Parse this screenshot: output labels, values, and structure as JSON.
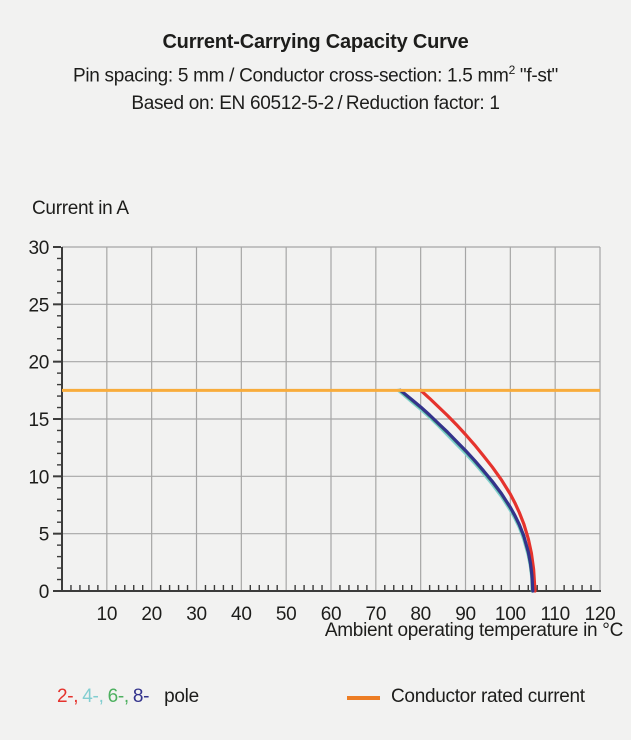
{
  "header": {
    "title": "Current-Carrying Capacity Curve",
    "subtitle1_main": "Pin spacing: 5 mm / Conductor cross-section: 1.5 mm",
    "subtitle1_sup": "2",
    "subtitle1_tail": " \"f-st\"",
    "subtitle2": "Based on: EN 60512-5-2 / Reduction factor: 1"
  },
  "chart_data": {
    "type": "line",
    "title": "Current-Carrying Capacity Curve",
    "xlabel": "Ambient operating temperature in °C",
    "ylabel": "Current in A",
    "xlim": [
      0,
      120
    ],
    "ylim": [
      0,
      30
    ],
    "x_major_ticks": [
      10,
      20,
      30,
      40,
      50,
      60,
      70,
      80,
      90,
      100,
      110,
      120
    ],
    "x_minor_step": 2,
    "y_major_ticks": [
      0,
      5,
      10,
      15,
      20,
      25,
      30
    ],
    "y_minor_step": 1,
    "grid": true,
    "grid_color": "#a6a6a6",
    "axis_color": "#3c3c3b",
    "rated_current": {
      "value": 17.5,
      "label": "Conductor rated current",
      "line_color": "#f8ac3c",
      "swatch_color": "#ed7d24"
    },
    "series": [
      {
        "name": "2-pole",
        "color": "#e5332d",
        "points": [
          [
            80,
            17.5
          ],
          [
            82,
            16.8
          ],
          [
            84,
            16.05
          ],
          [
            86,
            15.3
          ],
          [
            88,
            14.5
          ],
          [
            90,
            13.65
          ],
          [
            92,
            12.75
          ],
          [
            94,
            11.8
          ],
          [
            96,
            10.8
          ],
          [
            98,
            9.7
          ],
          [
            100,
            8.45
          ],
          [
            101,
            7.7
          ],
          [
            102,
            6.85
          ],
          [
            103,
            5.85
          ],
          [
            104,
            4.55
          ],
          [
            104.7,
            3.3
          ],
          [
            105.2,
            1.9
          ],
          [
            105.5,
            0
          ]
        ]
      },
      {
        "name": "4-pole",
        "color": "#82ced1",
        "points": [
          [
            75,
            17.5
          ],
          [
            78,
            16.5
          ],
          [
            80,
            15.85
          ],
          [
            82,
            15.15
          ],
          [
            84,
            14.4
          ],
          [
            86,
            13.6
          ],
          [
            88,
            12.8
          ],
          [
            90,
            12.0
          ],
          [
            92,
            11.15
          ],
          [
            94,
            10.25
          ],
          [
            96,
            9.3
          ],
          [
            98,
            8.25
          ],
          [
            100,
            7.05
          ],
          [
            101,
            6.35
          ],
          [
            102,
            5.55
          ],
          [
            103,
            4.5
          ],
          [
            104,
            3.1
          ],
          [
            104.5,
            2.1
          ],
          [
            104.8,
            1.1
          ],
          [
            104.9,
            0
          ]
        ]
      },
      {
        "name": "6-pole",
        "color": "#4db05f",
        "points": [
          [
            75.4,
            17.5
          ],
          [
            78,
            16.65
          ],
          [
            80,
            16.0
          ],
          [
            82,
            15.3
          ],
          [
            84,
            14.55
          ],
          [
            86,
            13.8
          ],
          [
            88,
            13.0
          ],
          [
            90,
            12.2
          ],
          [
            92,
            11.35
          ],
          [
            94,
            10.45
          ],
          [
            96,
            9.5
          ],
          [
            98,
            8.45
          ],
          [
            100,
            7.25
          ],
          [
            101,
            6.55
          ],
          [
            102,
            5.75
          ],
          [
            103,
            4.75
          ],
          [
            104,
            3.35
          ],
          [
            104.5,
            2.35
          ],
          [
            104.8,
            1.35
          ],
          [
            104.95,
            0
          ]
        ]
      },
      {
        "name": "8-pole",
        "color": "#33338c",
        "points": [
          [
            75.5,
            17.5
          ],
          [
            78,
            16.7
          ],
          [
            80,
            16.05
          ],
          [
            82,
            15.35
          ],
          [
            84,
            14.6
          ],
          [
            86,
            13.85
          ],
          [
            88,
            13.05
          ],
          [
            90,
            12.25
          ],
          [
            92,
            11.4
          ],
          [
            94,
            10.5
          ],
          [
            96,
            9.55
          ],
          [
            98,
            8.5
          ],
          [
            100,
            7.3
          ],
          [
            101,
            6.6
          ],
          [
            102,
            5.8
          ],
          [
            103,
            4.8
          ],
          [
            104,
            3.4
          ],
          [
            104.5,
            2.4
          ],
          [
            104.8,
            1.4
          ],
          [
            105,
            0
          ]
        ]
      }
    ],
    "draw_order": [
      "4-pole",
      "6-pole",
      "2-pole",
      "8-pole"
    ],
    "legend_position": "bottom"
  },
  "legend": {
    "pole_items": [
      {
        "label": "2-,",
        "color": "#e5332d"
      },
      {
        "label": "4-,",
        "color": "#82ced1"
      },
      {
        "label": "6-,",
        "color": "#4db05f"
      },
      {
        "label": "8-",
        "color": "#33338c"
      }
    ],
    "pole_suffix": "pole",
    "rated_label": "Conductor rated current"
  }
}
